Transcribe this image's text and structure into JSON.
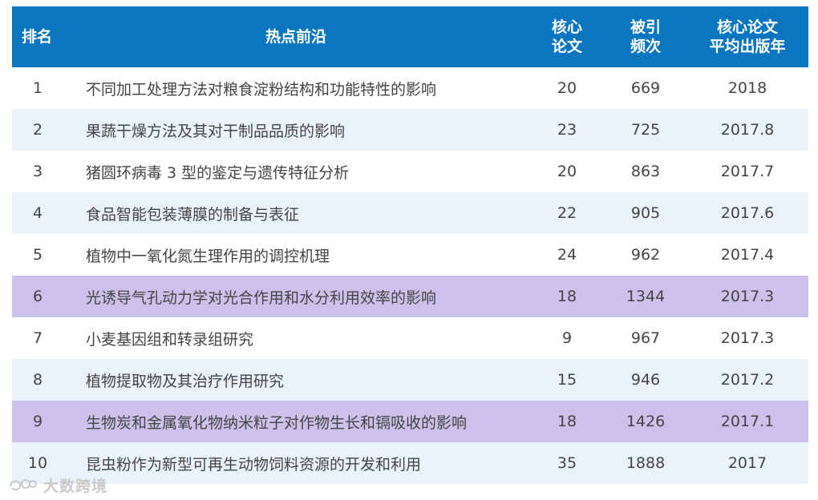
{
  "header": {
    "rank": "排名",
    "topic": "热点前沿",
    "core_line1": "核心",
    "core_line2": "论文",
    "cite_line1": "被引",
    "cite_line2": "频次",
    "year_line1": "核心论文",
    "year_line2": "平均出版年"
  },
  "rows": [
    {
      "rank": "1",
      "topic": "不同加工处理方法对粮食淀粉结构和功能特性的影响",
      "core": "20",
      "cite": "669",
      "year": "2018",
      "highlight": false
    },
    {
      "rank": "2",
      "topic": "果蔬干燥方法及其对干制品品质的影响",
      "core": "23",
      "cite": "725",
      "year": "2017.8",
      "highlight": false
    },
    {
      "rank": "3",
      "topic": "猪圆环病毒 3 型的鉴定与遗传特征分析",
      "core": "20",
      "cite": "863",
      "year": "2017.7",
      "highlight": false
    },
    {
      "rank": "4",
      "topic": "食品智能包装薄膜的制备与表征",
      "core": "22",
      "cite": "905",
      "year": "2017.6",
      "highlight": false
    },
    {
      "rank": "5",
      "topic": "植物中一氧化氮生理作用的调控机理",
      "core": "24",
      "cite": "962",
      "year": "2017.4",
      "highlight": false
    },
    {
      "rank": "6",
      "topic": "光诱导气孔动力学对光合作用和水分利用效率的影响",
      "core": "18",
      "cite": "1344",
      "year": "2017.3",
      "highlight": true
    },
    {
      "rank": "7",
      "topic": "小麦基因组和转录组研究",
      "core": "9",
      "cite": "967",
      "year": "2017.3",
      "highlight": false
    },
    {
      "rank": "8",
      "topic": "植物提取物及其治疗作用研究",
      "core": "15",
      "cite": "946",
      "year": "2017.2",
      "highlight": false
    },
    {
      "rank": "9",
      "topic": "生物炭和金属氧化物纳米粒子对作物生长和镉吸收的影响",
      "core": "18",
      "cite": "1426",
      "year": "2017.1",
      "highlight": true
    },
    {
      "rank": "10",
      "topic": "昆虫粉作为新型可再生动物饲料资源的开发和利用",
      "core": "35",
      "cite": "1888",
      "year": "2017",
      "highlight": false
    }
  ],
  "watermark": {
    "text": "大数跨境"
  },
  "colors": {
    "header_bg": "#0a76c0",
    "highlight_bg": "#cbc1ea",
    "stripe_bg": "#eaf3fb",
    "text": "#444444"
  }
}
